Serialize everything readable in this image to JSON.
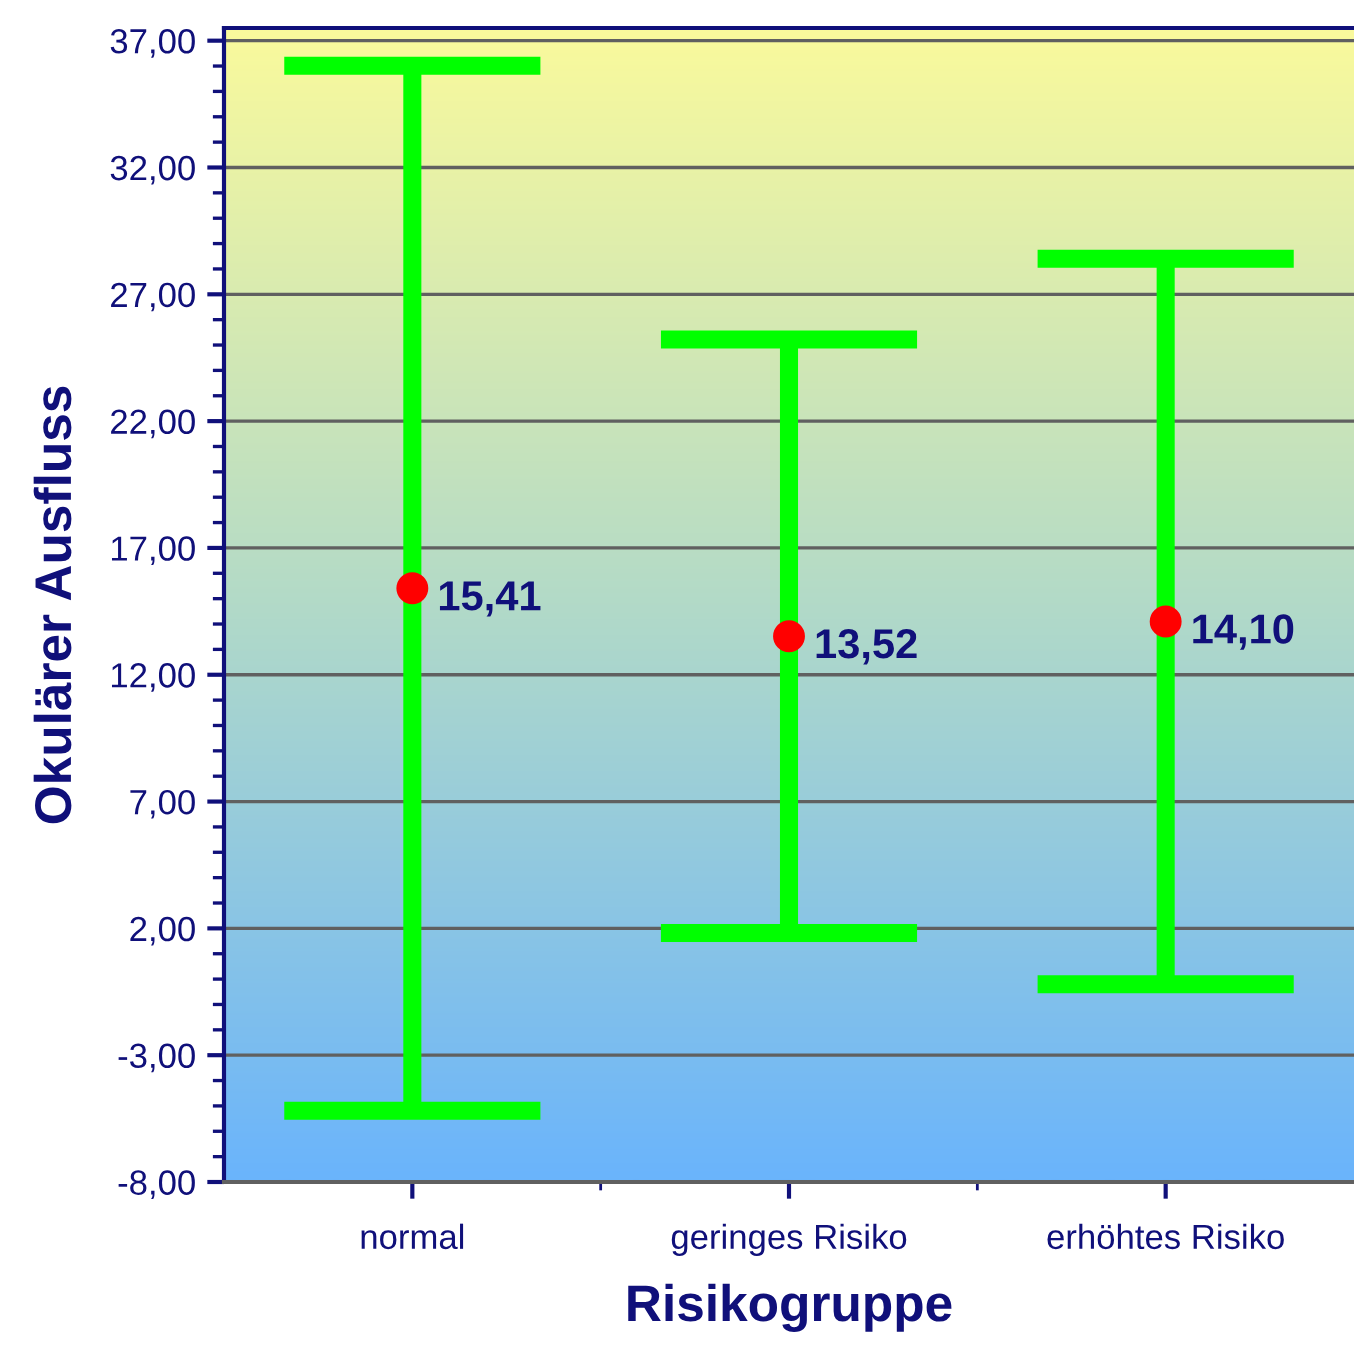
{
  "chart_data": {
    "type": "scatter",
    "xlabel": "Risikogruppe",
    "ylabel": "Okulärer Ausfluss",
    "categories": [
      "normal",
      "geringes Risiko",
      "erhöhtes Risiko"
    ],
    "values": [
      15.41,
      13.52,
      14.1
    ],
    "errors": [
      20.6,
      11.7,
      14.3
    ],
    "value_labels": [
      "15,41",
      "13,52",
      "14,10"
    ],
    "color": "#ff0000",
    "marker": "circle",
    "ylim": [
      -8,
      37.5
    ],
    "yticks": [
      {
        "value": -8,
        "label": "-8,00"
      },
      {
        "value": -3,
        "label": "-3,00"
      },
      {
        "value": 2,
        "label": "2,00"
      },
      {
        "value": 7,
        "label": "7,00"
      },
      {
        "value": 12,
        "label": "12,00"
      },
      {
        "value": 17,
        "label": "17,00"
      },
      {
        "value": 22,
        "label": "22,00"
      },
      {
        "value": 27,
        "label": "27,00"
      },
      {
        "value": 32,
        "label": "32,00"
      },
      {
        "value": 37,
        "label": "37,00"
      }
    ],
    "grid": "y",
    "legend": false
  }
}
